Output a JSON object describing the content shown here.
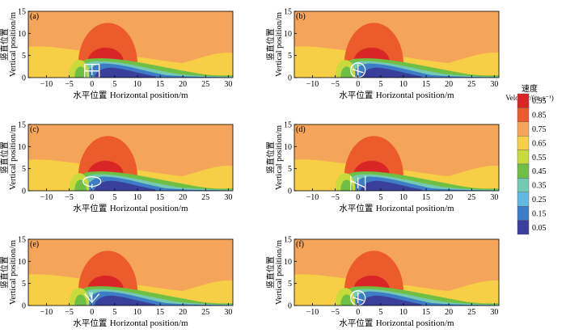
{
  "figure": {
    "panels": [
      {
        "label": "(a)",
        "structure": "square-frame"
      },
      {
        "label": "(b)",
        "structure": "round-canopy"
      },
      {
        "label": "(c)",
        "structure": "dense-crown"
      },
      {
        "label": "(d)",
        "structure": "columnar"
      },
      {
        "label": "(e)",
        "structure": "fan"
      },
      {
        "label": "(f)",
        "structure": "round-canopy"
      }
    ],
    "y_axis_label": {
      "cn": "竖直位置",
      "en": "Vertical position/m"
    },
    "x_axis_label": {
      "cn": "水平位置",
      "en": "Horizontal position/m"
    },
    "colorbar": {
      "title_cn": "速度",
      "title_en": "Velocity/(m·s⁻¹)"
    }
  },
  "chart_data": {
    "type": "heatmap",
    "subtype": "filled-contour",
    "x_range": [
      -14,
      31
    ],
    "y_range": [
      0,
      15
    ],
    "x_ticks": [
      -10,
      -5,
      0,
      5,
      10,
      15,
      20,
      25,
      30
    ],
    "y_ticks": [
      0,
      5,
      10,
      15
    ],
    "x_tick_labels": [
      "−10",
      "−5",
      "0",
      "5",
      "10",
      "15",
      "20",
      "25",
      "30"
    ],
    "y_tick_labels": [
      "0",
      "5",
      "10",
      "15"
    ],
    "background_velocity": 0.75,
    "colorbar_levels": [
      0.95,
      0.85,
      0.75,
      0.65,
      0.55,
      0.45,
      0.35,
      0.25,
      0.15,
      0.05
    ],
    "colorbar_tick_labels": [
      "0.95",
      "0.85",
      "0.75",
      "0.65",
      "0.55",
      "0.45",
      "0.35",
      "0.25",
      "0.15",
      "0.05"
    ],
    "colors": {
      "0.95": "#d92525",
      "0.85": "#ec5b2c",
      "0.75": "#f5a55a",
      "0.65": "#f7cf46",
      "0.55": "#c9db3c",
      "0.45": "#6fbf45",
      "0.35": "#74c9b2",
      "0.25": "#62b8df",
      "0.15": "#3d7cc7",
      "0.05": "#3a3f9c"
    },
    "x_label": "水平位置 Horizontal position/m",
    "y_label": "竖直位置 Vertical position/m"
  }
}
